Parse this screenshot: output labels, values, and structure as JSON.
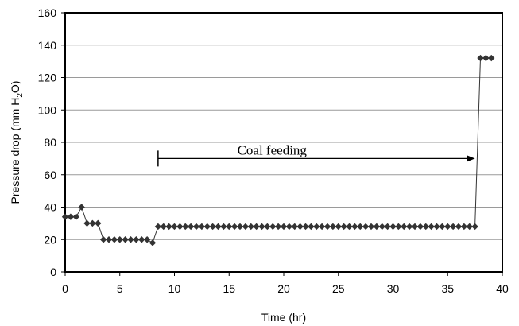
{
  "chart_data": {
    "type": "line",
    "title": "",
    "xlabel": "Time (hr)",
    "ylabel": "Pressure drop (mm H2O)",
    "ylabel_parts": {
      "pre": "Pressure drop (mm H",
      "sub": "2",
      "post": "O)"
    },
    "xlim": [
      0,
      40
    ],
    "ylim": [
      0,
      160
    ],
    "x_ticks": [
      0,
      5,
      10,
      15,
      20,
      25,
      30,
      35,
      40
    ],
    "y_ticks": [
      0,
      20,
      40,
      60,
      80,
      100,
      120,
      140,
      160
    ],
    "grid": "horizontal",
    "legend": "none",
    "series_color": "#333333",
    "marker": "diamond",
    "series": [
      {
        "name": "",
        "x": [
          0,
          0.5,
          1,
          1.5,
          2,
          2.5,
          3,
          3.5,
          4,
          4.5,
          5,
          5.5,
          6,
          6.5,
          7,
          7.5,
          8,
          8.5,
          9,
          9.5,
          10,
          10.5,
          11,
          11.5,
          12,
          12.5,
          13,
          13.5,
          14,
          14.5,
          15,
          15.5,
          16,
          16.5,
          17,
          17.5,
          18,
          18.5,
          19,
          19.5,
          20,
          20.5,
          21,
          21.5,
          22,
          22.5,
          23,
          23.5,
          24,
          24.5,
          25,
          25.5,
          26,
          26.5,
          27,
          27.5,
          28,
          28.5,
          29,
          29.5,
          30,
          30.5,
          31,
          31.5,
          32,
          32.5,
          33,
          33.5,
          34,
          34.5,
          35,
          35.5,
          36,
          36.5,
          37,
          37.5,
          38,
          38.5,
          39
        ],
        "y": [
          34,
          34,
          34,
          40,
          30,
          30,
          30,
          20,
          20,
          20,
          20,
          20,
          20,
          20,
          20,
          20,
          18,
          28,
          28,
          28,
          28,
          28,
          28,
          28,
          28,
          28,
          28,
          28,
          28,
          28,
          28,
          28,
          28,
          28,
          28,
          28,
          28,
          28,
          28,
          28,
          28,
          28,
          28,
          28,
          28,
          28,
          28,
          28,
          28,
          28,
          28,
          28,
          28,
          28,
          28,
          28,
          28,
          28,
          28,
          28,
          28,
          28,
          28,
          28,
          28,
          28,
          28,
          28,
          28,
          28,
          28,
          28,
          28,
          28,
          28,
          28,
          132,
          132,
          132
        ]
      }
    ],
    "annotation": {
      "text": "Coal feeding",
      "arrow_from_x": 8.5,
      "arrow_to_x": 37.5,
      "y": 70
    }
  }
}
